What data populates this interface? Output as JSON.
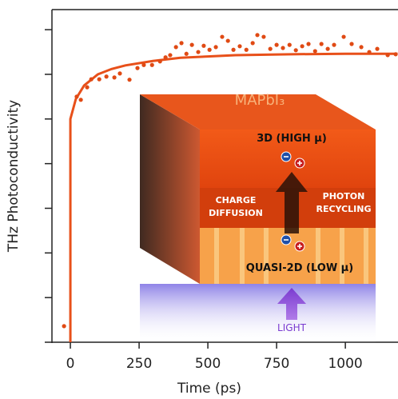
{
  "chart_data": {
    "type": "scatter_line",
    "xlabel": "Time (ps)",
    "ylabel": "THz Photoconductivity",
    "xlim": [
      -67,
      1190
    ],
    "xticks": [
      0,
      250,
      500,
      750,
      1000
    ],
    "ylim": [
      0,
      7.45
    ],
    "yticks": [
      0,
      1,
      2,
      3,
      4,
      5,
      6,
      7
    ],
    "ytick_labels": false,
    "points": {
      "color": "#e04a14",
      "x": [
        -23,
        23,
        38,
        61,
        76,
        105,
        131,
        160,
        180,
        215,
        244,
        267,
        297,
        326,
        346,
        363,
        384,
        404,
        422,
        442,
        465,
        485,
        506,
        529,
        552,
        573,
        593,
        616,
        640,
        663,
        680,
        703,
        727,
        750,
        773,
        797,
        820,
        843,
        866,
        890,
        913,
        936,
        959,
        994,
        1023,
        1058,
        1087,
        1116,
        1154,
        1183
      ],
      "values": [
        0.36,
        5.5,
        5.43,
        5.71,
        5.89,
        5.89,
        5.95,
        5.93,
        6.02,
        5.88,
        6.14,
        6.21,
        6.21,
        6.29,
        6.38,
        6.43,
        6.61,
        6.7,
        6.46,
        6.66,
        6.5,
        6.64,
        6.55,
        6.61,
        6.84,
        6.75,
        6.55,
        6.63,
        6.55,
        6.7,
        6.88,
        6.84,
        6.57,
        6.66,
        6.59,
        6.66,
        6.54,
        6.63,
        6.68,
        6.52,
        6.68,
        6.57,
        6.66,
        6.84,
        6.68,
        6.61,
        6.5,
        6.57,
        6.43,
        6.45
      ]
    },
    "fit": {
      "color": "#e8501a",
      "x": [
        0,
        0,
        20,
        50,
        100,
        150,
        200,
        300,
        400,
        500,
        600,
        800,
        1000,
        1190
      ],
      "values": [
        0,
        5.0,
        5.45,
        5.75,
        6.0,
        6.12,
        6.2,
        6.3,
        6.37,
        6.4,
        6.43,
        6.45,
        6.46,
        6.46
      ]
    },
    "annotations": [
      "MAPbI₃",
      "3D (HIGH μ)",
      "CHARGE DIFFUSION",
      "PHOTON RECYCLING",
      "QUASI-2D (LOW μ)",
      "LIGHT"
    ]
  }
}
